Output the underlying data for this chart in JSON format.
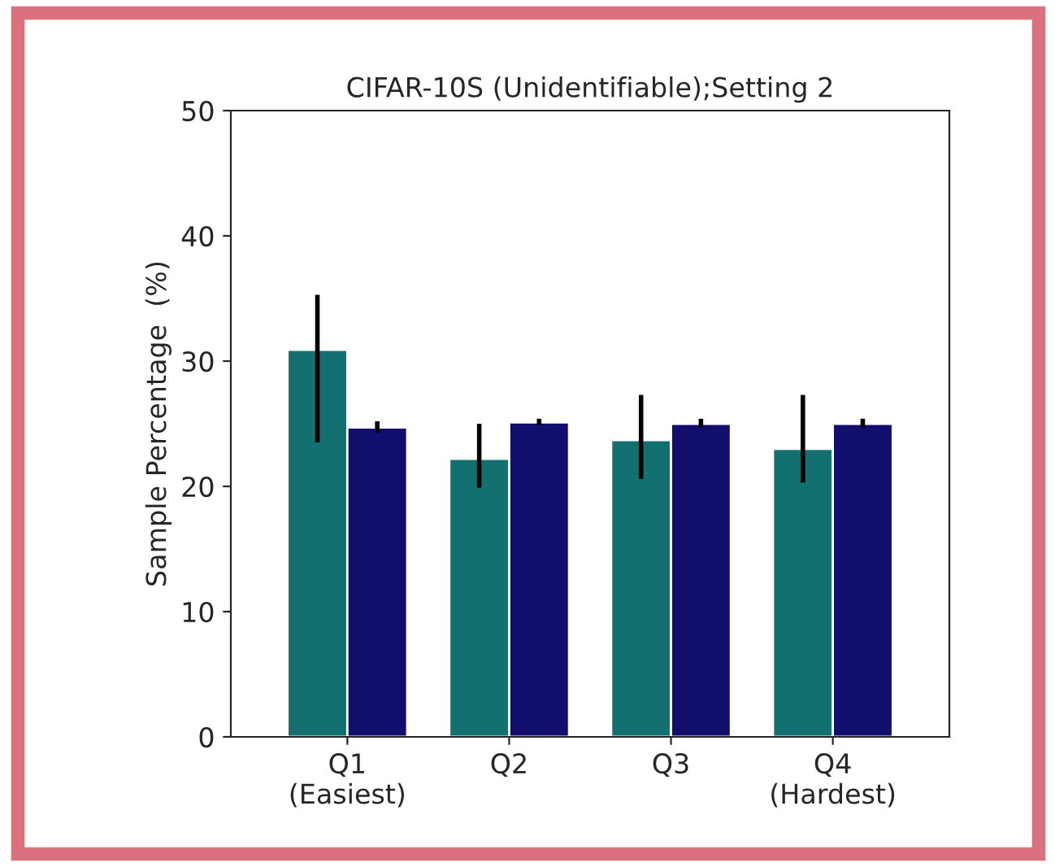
{
  "chart_data": {
    "type": "bar",
    "title": "CIFAR-10S (Unidentifiable);Setting 2",
    "ylabel": "Sample Percentage  (%)",
    "categories": [
      "Q1\n(Easiest)",
      "Q2",
      "Q3",
      "Q4\n(Hardest)"
    ],
    "series": [
      {
        "color": "#137070",
        "values": [
          30.9,
          22.2,
          23.7,
          23.0
        ],
        "errors": [
          [
            23.5,
            35.3
          ],
          [
            19.9,
            25.0
          ],
          [
            20.6,
            27.3
          ],
          [
            20.3,
            27.3
          ]
        ]
      },
      {
        "color": "#120e6e",
        "values": [
          24.7,
          25.1,
          25.0,
          25.0
        ],
        "errors": [
          [
            24.3,
            25.2
          ],
          [
            24.9,
            25.4
          ],
          [
            24.7,
            25.4
          ],
          [
            24.7,
            25.4
          ]
        ]
      }
    ],
    "ylim": [
      0,
      50
    ],
    "yticks": [
      0,
      10,
      20,
      30,
      40,
      50
    ],
    "grid": false,
    "legend": false
  }
}
